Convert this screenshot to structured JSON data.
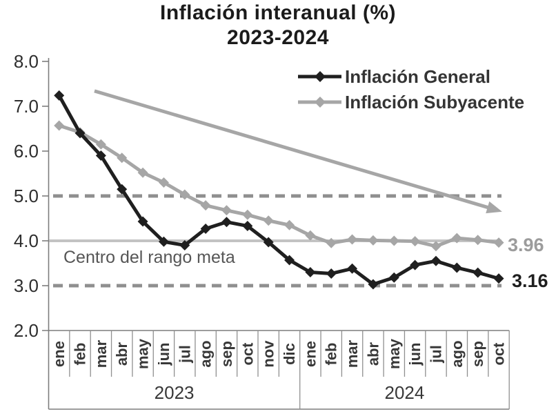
{
  "title": {
    "line1": "Inflación interanual (%)",
    "line2": "2023-2024"
  },
  "legend": [
    {
      "label": "Inflación General",
      "color": "#1f1f1f"
    },
    {
      "label": "Inflación Subyacente",
      "color": "#a6a6a6"
    }
  ],
  "annotations": {
    "center_range_label": "Centro del rango meta",
    "general_end_value": "3.16",
    "subyacente_end_value": "3.96"
  },
  "colors": {
    "general": "#1f1f1f",
    "subyacente": "#a6a6a6",
    "dashed_band": "#8f8f8f",
    "center_line": "#c3c3c3",
    "trend_arrow": "#a6a6a6",
    "axis": "#7d7d7d",
    "tick_text": "#2e2e2e",
    "month_text": "#383838"
  },
  "chart_data": {
    "type": "line",
    "title": "Inflación interanual (%) 2023-2024",
    "categories": [
      "ene",
      "feb",
      "mar",
      "abr",
      "may",
      "jun",
      "jul",
      "ago",
      "sep",
      "oct",
      "nov",
      "dic",
      "ene",
      "feb",
      "mar",
      "abr",
      "may",
      "jun",
      "jul",
      "ago",
      "sep",
      "oct"
    ],
    "year_groups": [
      {
        "label": "2023",
        "start": 0,
        "count": 12
      },
      {
        "label": "2024",
        "start": 12,
        "count": 10
      }
    ],
    "series": [
      {
        "name": "Inflación General",
        "color": "#1f1f1f",
        "values": [
          7.24,
          6.4,
          5.9,
          5.15,
          4.43,
          3.98,
          3.9,
          4.27,
          4.42,
          4.33,
          3.97,
          3.57,
          3.3,
          3.27,
          3.38,
          3.03,
          3.18,
          3.46,
          3.55,
          3.4,
          3.29,
          3.16
        ]
      },
      {
        "name": "Inflación Subyacente",
        "color": "#a6a6a6",
        "values": [
          6.57,
          6.42,
          6.15,
          5.85,
          5.52,
          5.3,
          5.03,
          4.79,
          4.68,
          4.58,
          4.45,
          4.35,
          4.12,
          3.95,
          4.03,
          4.01,
          4.0,
          3.99,
          3.88,
          4.06,
          4.02,
          3.96
        ]
      }
    ],
    "ylim": [
      2.0,
      8.0
    ],
    "yticks": [
      8.0,
      7.0,
      6.0,
      5.0,
      4.0,
      3.0,
      2.0
    ],
    "grid": false,
    "legend_position": "top-right",
    "reference_lines": [
      {
        "value": 5.0,
        "style": "dashed",
        "color": "#8f8f8f"
      },
      {
        "value": 4.0,
        "style": "solid",
        "color": "#c3c3c3",
        "label": "Centro del rango meta"
      },
      {
        "value": 3.0,
        "style": "dashed",
        "color": "#8f8f8f"
      }
    ],
    "trend_arrow": {
      "from_index": 1.69,
      "from_value": 7.34,
      "to_index": 21.16,
      "to_value": 4.65,
      "color": "#a6a6a6"
    },
    "end_labels": [
      {
        "series": "Inflación General",
        "text": "3.16"
      },
      {
        "series": "Inflación Subyacente",
        "text": "3.96"
      }
    ]
  }
}
